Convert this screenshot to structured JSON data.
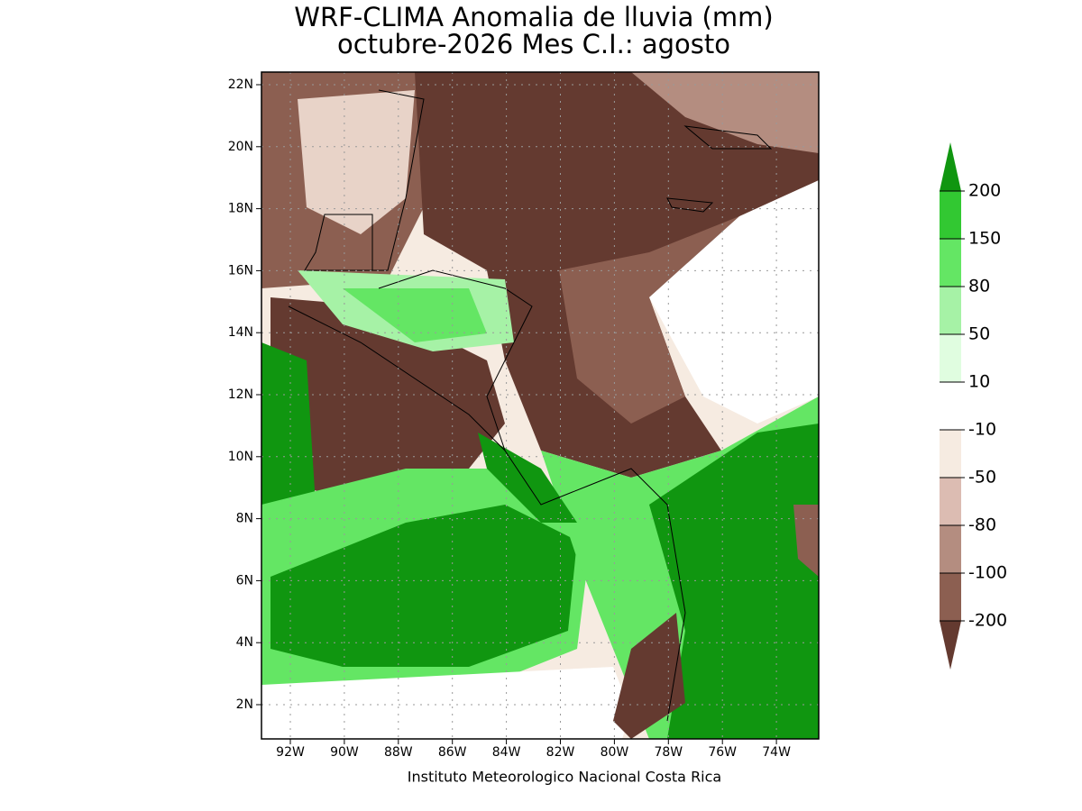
{
  "title": [
    "WRF-CLIMA Anomalia de lluvia (mm)",
    "octubre-2026 Mes C.I.: agosto"
  ],
  "map": {
    "x_labels": [
      "92W",
      "90W",
      "88W",
      "86W",
      "84W",
      "82W",
      "80W",
      "78W",
      "76W",
      "74W"
    ],
    "y_labels": [
      "22N",
      "20N",
      "18N",
      "16N",
      "14N",
      "12N",
      "10N",
      "8N",
      "6N",
      "4N",
      "2N"
    ]
  },
  "colorbar": {
    "labels": [
      "200",
      "150",
      "80",
      "50",
      "10",
      "-10",
      "-50",
      "-80",
      "-100",
      "-200"
    ],
    "colors": [
      "#109610",
      "#32c832",
      "#64e664",
      "#a6f2a6",
      "#e0fde0",
      "#ffffff",
      "#f6ebe1",
      "#dcbcb2",
      "#b48d80",
      "#8c5f51",
      "#643a30"
    ]
  },
  "footer": "Instituto Meteorologico Nacional Costa Rica"
}
